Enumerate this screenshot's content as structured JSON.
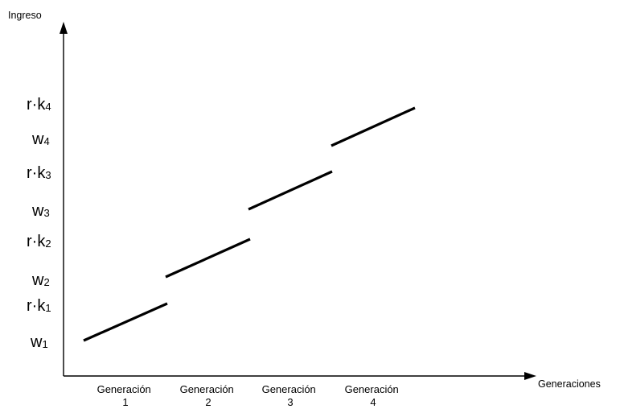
{
  "axes": {
    "y_label": "Ingreso",
    "x_label": "Generaciones"
  },
  "y_ticks": [
    {
      "base": "w",
      "sub": "1"
    },
    {
      "base": "r·k",
      "sub": "1"
    },
    {
      "base": "w",
      "sub": "2"
    },
    {
      "base": "r·k",
      "sub": "2"
    },
    {
      "base": "w",
      "sub": "3"
    },
    {
      "base": "r·k",
      "sub": "3"
    },
    {
      "base": "w",
      "sub": "4"
    },
    {
      "base": "r·k",
      "sub": "4"
    }
  ],
  "generations": [
    {
      "line1": "Generación",
      "line2": "1",
      "start": "w1",
      "end": "r·k1"
    },
    {
      "line1": "Generación",
      "line2": "2",
      "start": "w2",
      "end": "r·k2"
    },
    {
      "line1": "Generación",
      "line2": "3",
      "start": "w3",
      "end": "r·k3"
    },
    {
      "line1": "Generación",
      "line2": "4",
      "start": "w4",
      "end": "r·k4"
    }
  ]
}
